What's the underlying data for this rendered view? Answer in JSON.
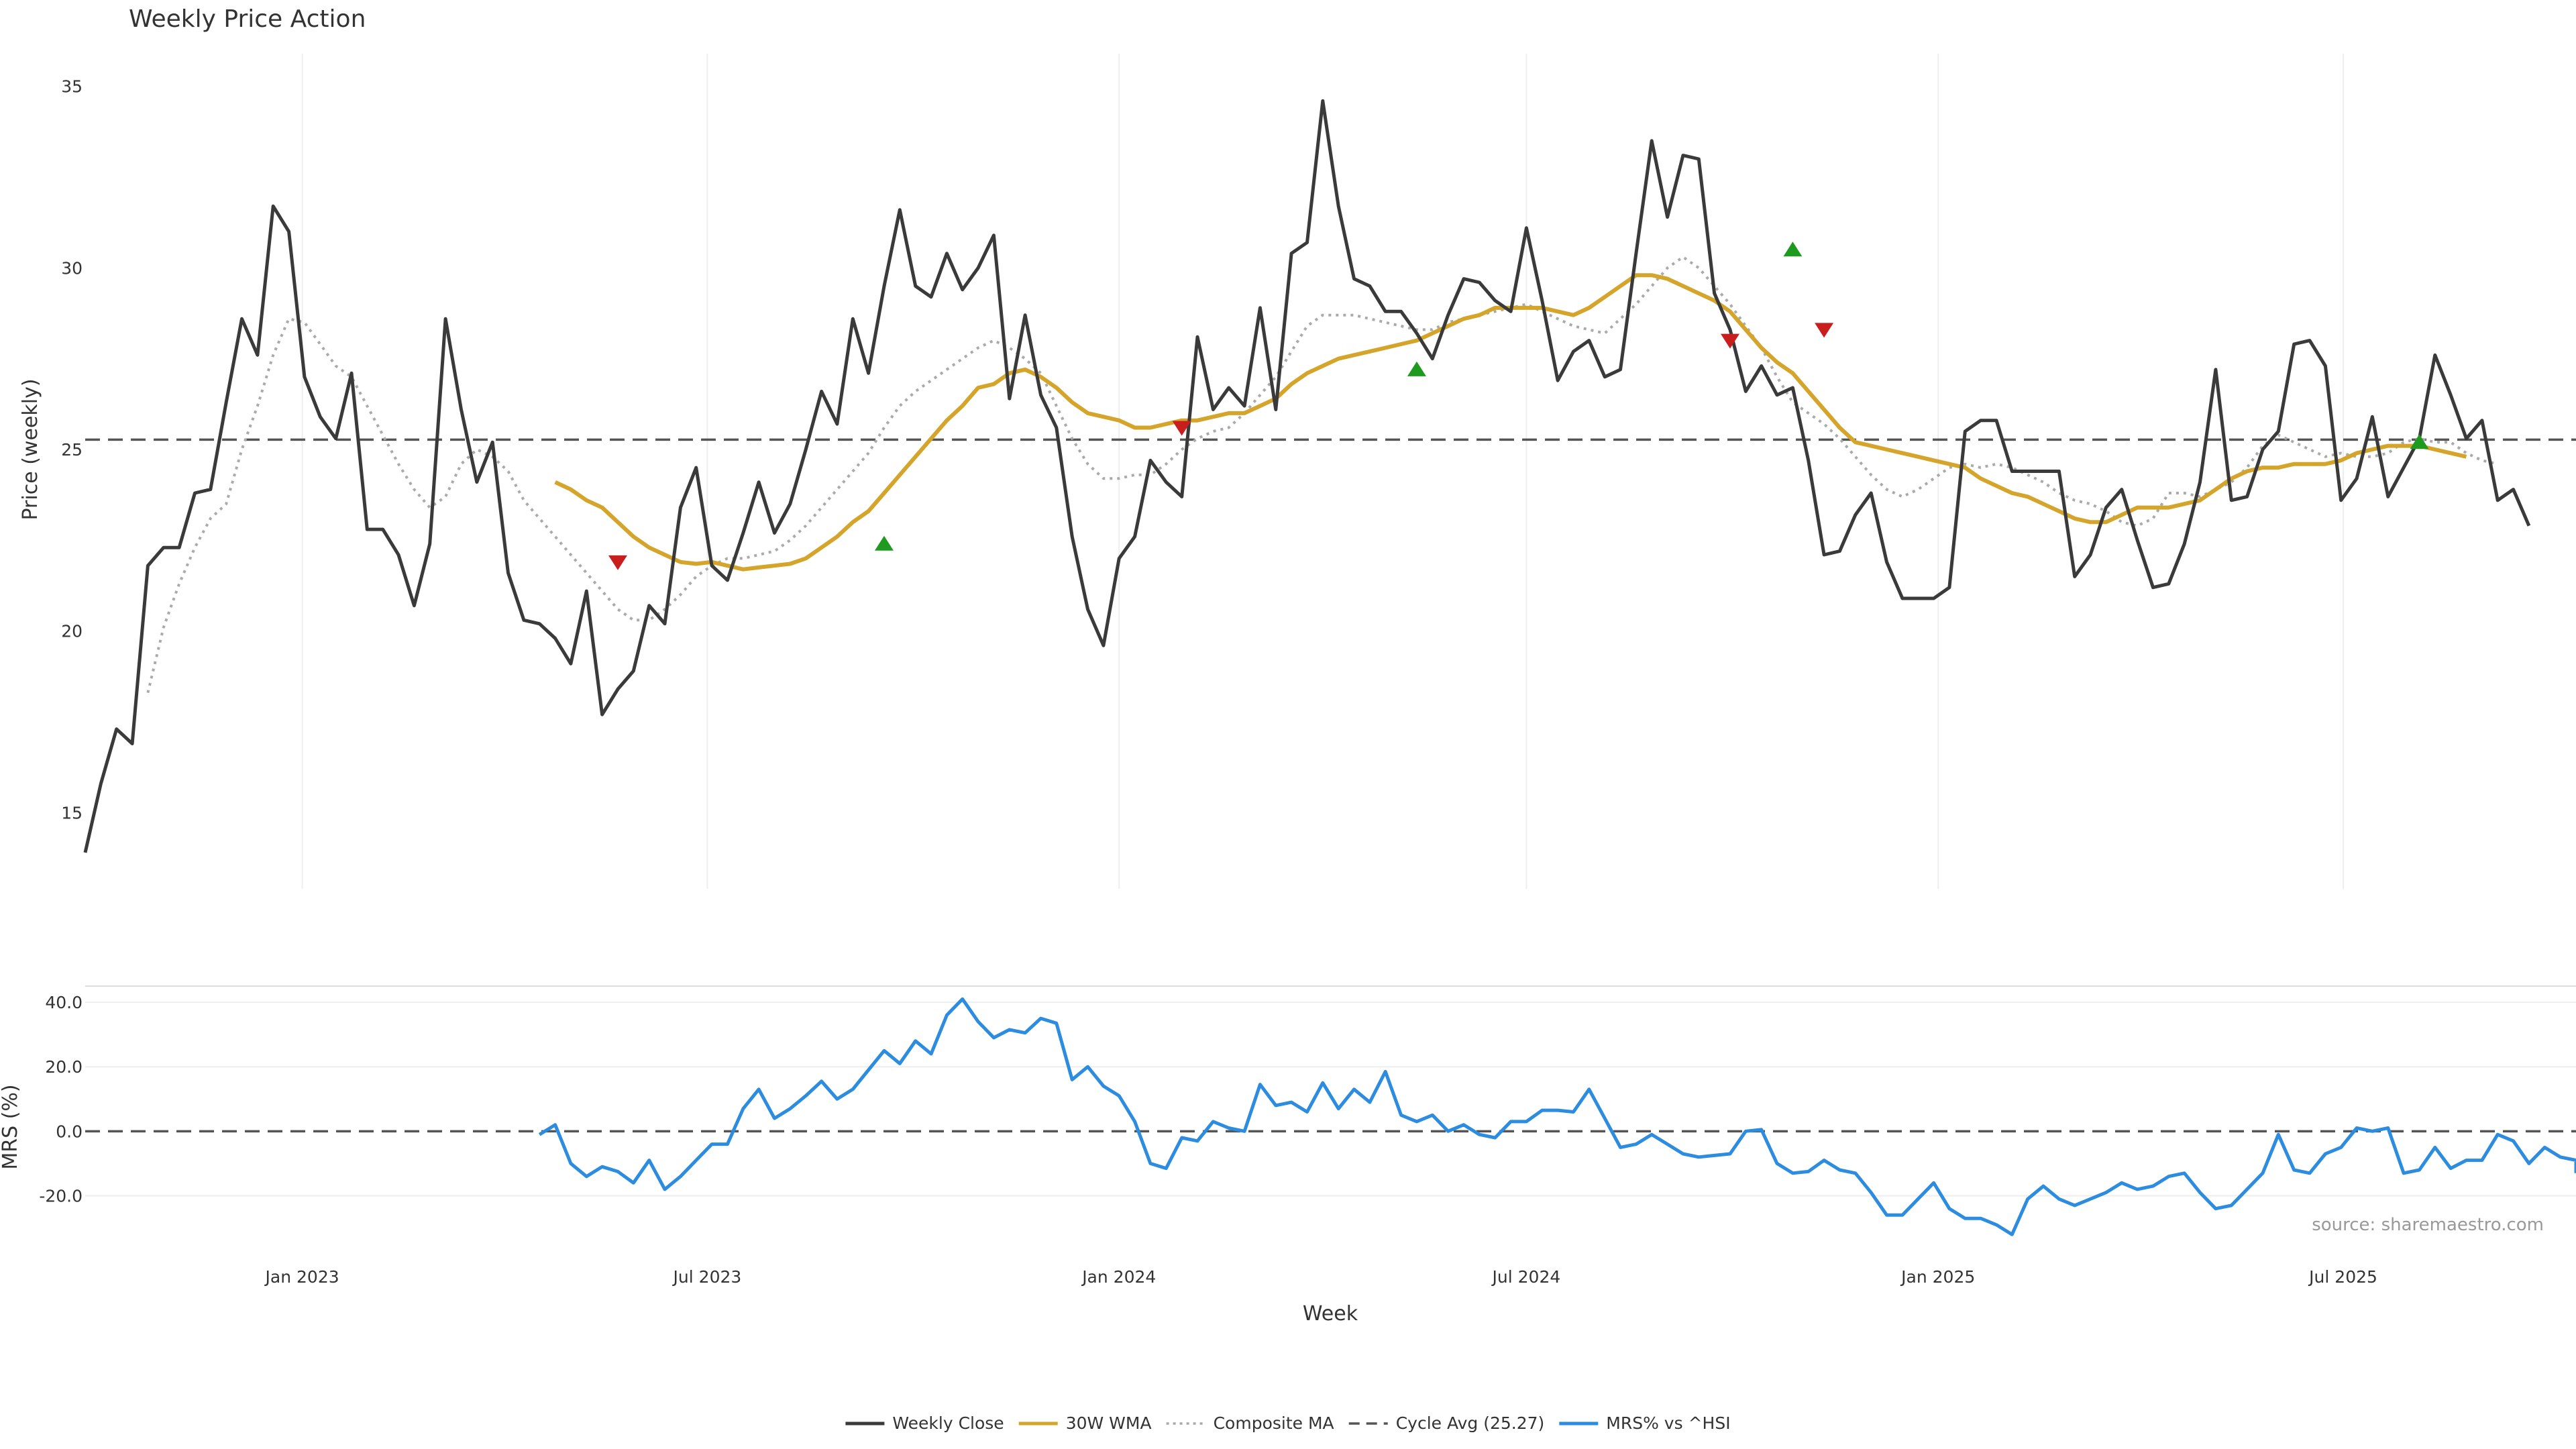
{
  "chart_data": {
    "type": "line",
    "title": "Weekly Price Action",
    "source_note": "source: sharemaestro.com",
    "xlabel": "Week",
    "x_tick_labels": [
      "Jan 2023",
      "Jul 2023",
      "Jan 2024",
      "Jul 2024",
      "Jan 2025",
      "Jul 2025"
    ],
    "x_tick_dates": [
      "2023-01-01",
      "2023-07-01",
      "2024-01-01",
      "2024-07-01",
      "2025-01-01",
      "2025-07-01"
    ],
    "x_range": [
      "2022-09-26",
      "2025-10-13"
    ],
    "grid": true,
    "legend_position": "bottom-center",
    "legend": [
      {
        "label": "Weekly Close",
        "color": "#3a3a3a",
        "style": "solid"
      },
      {
        "label": "30W WMA",
        "color": "#d4a52a",
        "style": "solid"
      },
      {
        "label": "Composite MA",
        "color": "#aaaaaa",
        "style": "dotted"
      },
      {
        "label": "Cycle Avg (25.27)",
        "color": "#555555",
        "style": "dashed"
      },
      {
        "label": "MRS% vs ^HSI",
        "color": "#2b8ce0",
        "style": "solid"
      }
    ],
    "price_panel": {
      "ylabel": "Price (weekly)",
      "ylim": [
        12.9,
        35.9
      ],
      "yticks": [
        15,
        20,
        25,
        30,
        35
      ],
      "cycle_avg": 25.27,
      "series": [
        {
          "name": "Weekly Close",
          "start_date": "2022-09-26",
          "step_days": 7,
          "values": [
            13.9,
            15.8,
            17.3,
            16.9,
            21.8,
            22.3,
            22.3,
            23.8,
            23.9,
            26.3,
            28.6,
            27.6,
            31.7,
            31.0,
            27.0,
            25.9,
            25.3,
            27.1,
            22.8,
            22.8,
            22.1,
            20.7,
            22.4,
            28.6,
            26.1,
            24.1,
            25.2,
            21.6,
            20.3,
            20.2,
            19.8,
            19.1,
            21.1,
            17.7,
            18.4,
            18.9,
            20.7,
            20.2,
            23.4,
            24.5,
            21.8,
            21.4,
            22.7,
            24.1,
            22.7,
            23.5,
            25.0,
            26.6,
            25.7,
            28.6,
            27.1,
            29.5,
            31.6,
            29.5,
            29.2,
            30.4,
            29.4,
            30.0,
            30.9,
            26.4,
            28.7,
            26.5,
            25.6,
            22.6,
            20.6,
            19.6,
            22.0,
            22.6,
            24.7,
            24.1,
            23.7,
            28.1,
            26.1,
            26.7,
            26.2,
            28.9,
            26.1,
            30.4,
            30.7,
            34.6,
            31.7,
            29.7,
            29.5,
            28.8,
            28.8,
            28.2,
            27.5,
            28.7,
            29.7,
            29.6,
            29.1,
            28.8,
            31.1,
            29.1,
            26.9,
            27.7,
            28.0,
            27.0,
            27.2,
            30.4,
            33.5,
            31.4,
            33.1,
            33.0,
            29.3,
            28.3,
            26.6,
            27.3,
            26.5,
            26.7,
            24.7,
            22.1,
            22.2,
            23.2,
            23.8,
            21.9,
            20.9,
            20.9,
            20.9,
            21.2,
            25.5,
            25.8,
            25.8,
            24.4,
            24.4,
            24.4,
            24.4,
            21.5,
            22.1,
            23.4,
            23.9,
            22.5,
            21.2,
            21.3,
            22.4,
            24.1,
            27.2,
            23.6,
            23.7,
            25.0,
            25.5,
            27.9,
            28.0,
            27.3,
            23.6,
            24.2,
            25.9,
            23.7,
            24.5,
            25.3,
            27.6,
            26.5,
            25.3,
            25.8,
            23.6,
            23.9,
            22.9
          ]
        },
        {
          "name": "30W WMA",
          "start_date": "2023-04-24",
          "step_days": 7,
          "values": [
            24.1,
            23.9,
            23.6,
            23.4,
            23.0,
            22.6,
            22.3,
            22.1,
            21.9,
            21.85,
            21.9,
            21.8,
            21.7,
            21.75,
            21.8,
            21.85,
            22.0,
            22.3,
            22.6,
            23.0,
            23.3,
            23.8,
            24.3,
            24.8,
            25.3,
            25.8,
            26.2,
            26.7,
            26.8,
            27.1,
            27.2,
            27.0,
            26.7,
            26.3,
            26.0,
            25.9,
            25.8,
            25.6,
            25.6,
            25.7,
            25.8,
            25.8,
            25.9,
            26.0,
            26.0,
            26.2,
            26.4,
            26.8,
            27.1,
            27.3,
            27.5,
            27.6,
            27.7,
            27.8,
            27.9,
            28.0,
            28.2,
            28.4,
            28.6,
            28.7,
            28.9,
            28.9,
            28.9,
            28.9,
            28.8,
            28.7,
            28.9,
            29.2,
            29.5,
            29.8,
            29.8,
            29.7,
            29.5,
            29.3,
            29.1,
            28.8,
            28.3,
            27.8,
            27.4,
            27.1,
            26.6,
            26.1,
            25.6,
            25.2,
            25.1,
            25.0,
            24.9,
            24.8,
            24.7,
            24.6,
            24.5,
            24.2,
            24.0,
            23.8,
            23.7,
            23.5,
            23.3,
            23.1,
            23.0,
            23.0,
            23.2,
            23.4,
            23.4,
            23.4,
            23.5,
            23.6,
            23.9,
            24.2,
            24.4,
            24.5,
            24.5,
            24.6,
            24.6,
            24.6,
            24.7,
            24.9,
            25.0,
            25.1,
            25.1,
            25.1,
            25.0,
            24.9,
            24.8
          ]
        },
        {
          "name": "Composite MA",
          "start_date": "2022-10-24",
          "step_days": 7,
          "values": [
            18.3,
            20.1,
            21.3,
            22.3,
            23.1,
            23.5,
            25.0,
            26.2,
            27.6,
            28.6,
            28.5,
            27.9,
            27.3,
            27.0,
            26.2,
            25.4,
            24.6,
            23.9,
            23.4,
            23.7,
            24.6,
            25.0,
            24.8,
            24.4,
            23.6,
            23.1,
            22.6,
            22.1,
            21.6,
            21.1,
            20.6,
            20.3,
            20.3,
            20.6,
            21.0,
            21.5,
            21.8,
            22.0,
            22.0,
            22.1,
            22.2,
            22.5,
            22.9,
            23.4,
            23.9,
            24.4,
            24.9,
            25.6,
            26.2,
            26.6,
            26.9,
            27.2,
            27.5,
            27.8,
            28.0,
            27.8,
            27.5,
            27.1,
            26.2,
            25.3,
            24.6,
            24.2,
            24.2,
            24.3,
            24.3,
            24.6,
            25.0,
            25.3,
            25.5,
            25.6,
            26.0,
            26.5,
            27.0,
            27.7,
            28.4,
            28.7,
            28.7,
            28.7,
            28.6,
            28.5,
            28.4,
            28.3,
            28.3,
            28.5,
            28.6,
            28.7,
            28.8,
            28.9,
            29.0,
            28.8,
            28.6,
            28.4,
            28.3,
            28.2,
            28.6,
            29.0,
            29.5,
            30.0,
            30.3,
            30.0,
            29.5,
            29.0,
            28.4,
            27.8,
            27.0,
            26.3,
            26.0,
            25.7,
            25.3,
            24.8,
            24.3,
            23.9,
            23.7,
            23.9,
            24.2,
            24.5,
            24.6,
            24.5,
            24.6,
            24.5,
            24.3,
            24.1,
            23.8,
            23.6,
            23.5,
            23.3,
            23.0,
            22.9,
            23.1,
            23.8,
            23.8,
            23.7,
            23.9,
            24.1,
            24.5,
            25.1,
            25.4,
            25.2,
            25.0,
            24.8,
            24.9,
            24.8,
            24.8,
            24.9,
            25.2,
            25.3,
            25.2,
            25.2,
            24.9,
            24.7,
            24.6
          ]
        }
      ],
      "sell_signals": [
        {
          "date": "2023-05-22",
          "value": 21.9
        },
        {
          "date": "2024-01-29",
          "value": 25.6
        },
        {
          "date": "2024-09-30",
          "value": 28.0
        },
        {
          "date": "2024-11-11",
          "value": 28.3
        }
      ],
      "buy_signals": [
        {
          "date": "2023-09-18",
          "value": 22.4
        },
        {
          "date": "2024-05-13",
          "value": 27.2
        },
        {
          "date": "2024-10-28",
          "value": 30.5
        },
        {
          "date": "2025-08-04",
          "value": 25.2
        }
      ]
    },
    "mrs_panel": {
      "ylabel": "MRS (%)",
      "ylim": [
        -33,
        45
      ],
      "yticks": [
        40,
        20,
        0,
        -20
      ],
      "ytick_labels": [
        "40.0",
        "20.0",
        "0.0",
        "-20.0"
      ],
      "zero_line": true,
      "series": [
        {
          "name": "MRS% vs ^HSI",
          "start_date": "2023-04-17",
          "step_days": 7,
          "values": [
            -1,
            2,
            -10,
            -14,
            -11,
            -12.5,
            -16,
            -9,
            -18,
            -14,
            -9,
            -4,
            -4,
            7,
            13,
            4,
            7,
            11,
            15.5,
            10,
            13,
            19,
            25,
            21,
            28,
            24,
            36,
            41,
            34,
            29,
            31.5,
            30.5,
            35,
            33.5,
            16,
            20,
            14,
            11,
            3,
            -10,
            -11.5,
            -2,
            -3,
            3,
            1,
            0,
            14.5,
            8,
            9,
            6,
            15,
            7,
            13,
            9,
            18.5,
            5,
            3,
            5,
            0,
            2,
            -1,
            -2,
            3,
            3,
            6.5,
            6.5,
            6,
            13,
            4,
            -5,
            -4,
            -1,
            -4,
            -7,
            -8,
            -7.5,
            -7,
            0,
            0.5,
            -10,
            -13,
            -12.5,
            -9,
            -12,
            -13,
            -19,
            -26,
            -26,
            -21,
            -16,
            -24,
            -27,
            -27,
            -29,
            -32,
            -21,
            -17,
            -21,
            -23,
            -21,
            -19,
            -16,
            -18,
            -17,
            -14,
            -13,
            -19,
            -24,
            -23,
            -18,
            -13,
            -1,
            -12,
            -13,
            -7,
            -5,
            1,
            0,
            1,
            -13,
            -12,
            -5,
            -11.5,
            -9,
            -9,
            -1,
            -3,
            -10,
            -5,
            -8,
            -9,
            -13
          ]
        }
      ]
    }
  }
}
